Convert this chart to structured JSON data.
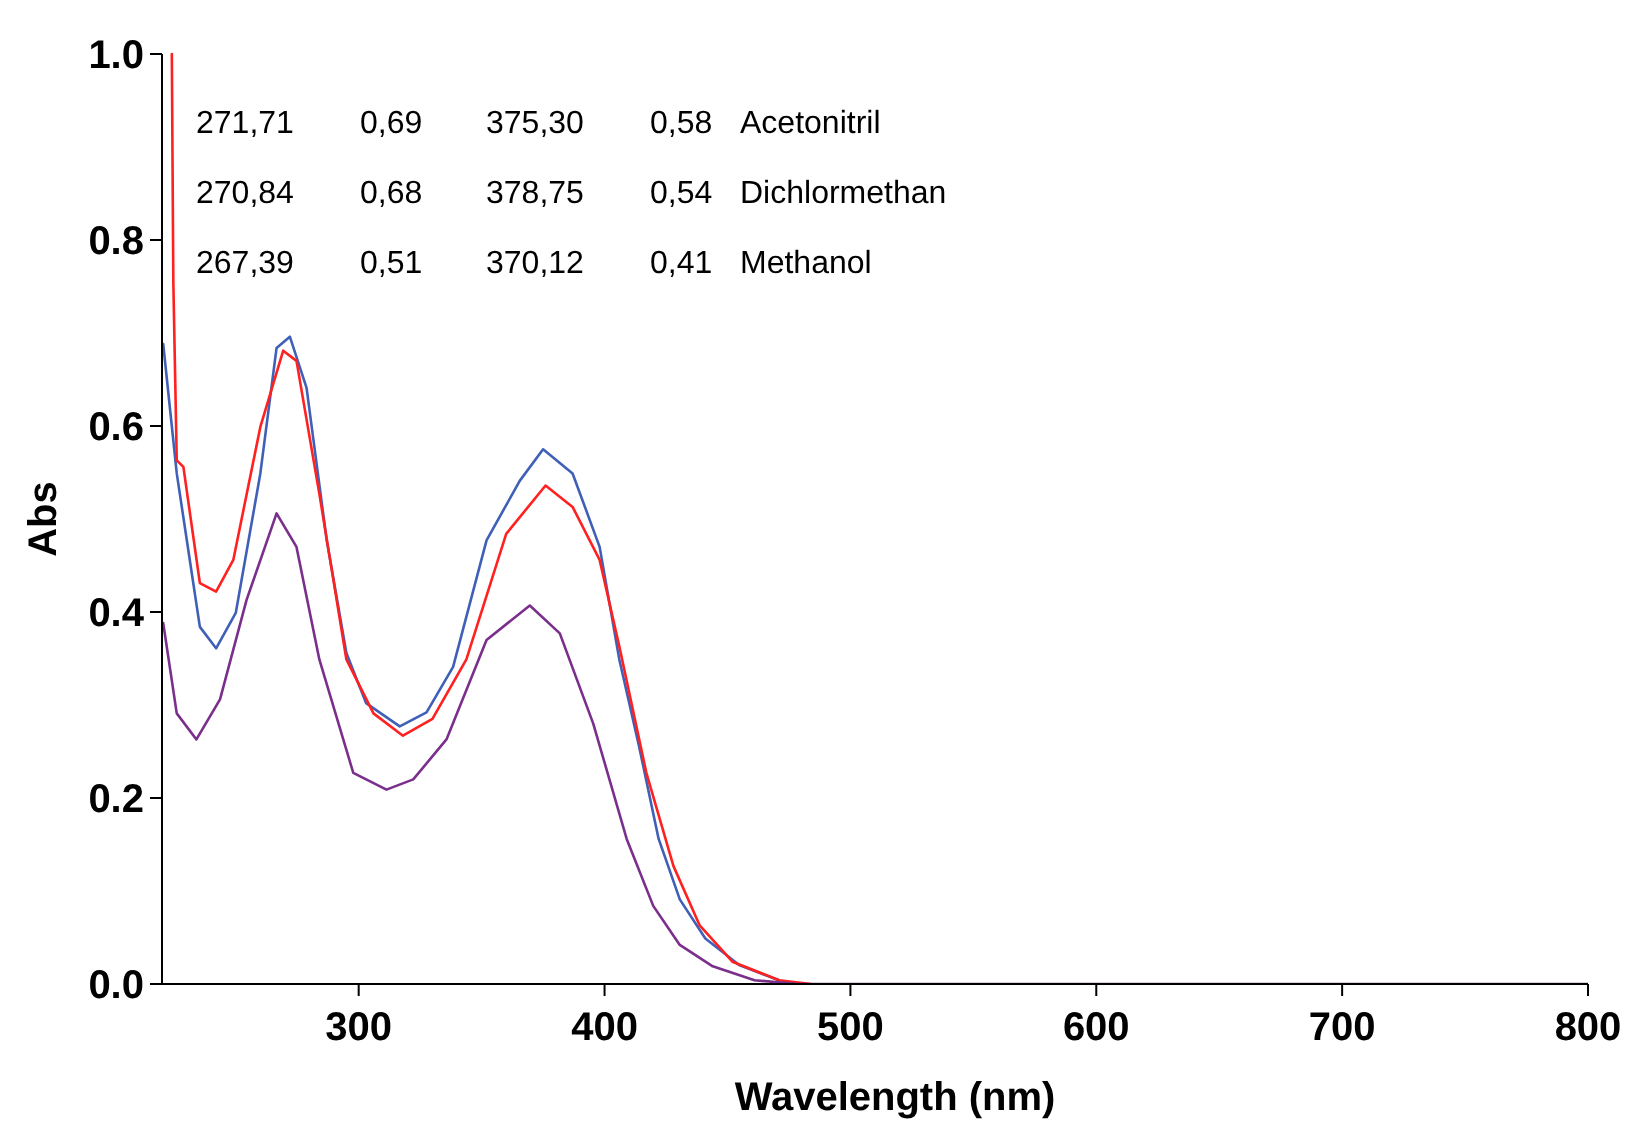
{
  "chart_data": {
    "type": "line",
    "xlabel": "Wavelength (nm)",
    "ylabel": "Abs",
    "xlim": [
      220,
      800
    ],
    "xticks": [
      300,
      400,
      500,
      600,
      700,
      800
    ],
    "ylim": [
      0,
      1
    ],
    "yticks": [
      {
        "value": 0,
        "label": "0.0"
      },
      {
        "value": 0.2,
        "label": "0.2"
      },
      {
        "value": 0.4,
        "label": "0.4"
      },
      {
        "value": 0.6,
        "label": "0.6"
      },
      {
        "value": 0.8,
        "label": "0.8"
      },
      {
        "value": 1,
        "label": "1.0"
      }
    ],
    "grid": false,
    "marker": "none",
    "line_style": "solid",
    "series": [
      {
        "color": "#4060b8",
        "x": [
          220.5,
          226,
          235.4,
          242,
          250,
          260,
          266.6,
          272,
          278.8,
          287,
          295,
          303,
          316.7,
          327.6,
          338.4,
          352,
          365.5,
          375,
          387,
          398,
          406,
          414,
          422,
          430.6,
          441,
          455,
          471
        ],
        "values": [
          0.688,
          0.549,
          0.384,
          0.361,
          0.399,
          0.549,
          0.684,
          0.696,
          0.641,
          0.477,
          0.356,
          0.302,
          0.277,
          0.292,
          0.341,
          0.477,
          0.541,
          0.575,
          0.549,
          0.47,
          0.349,
          0.256,
          0.156,
          0.091,
          0.049,
          0.02,
          0.004
        ]
      },
      {
        "color": "#ff2020",
        "x": [
          224,
          224.6,
          226,
          228.7,
          235.4,
          242,
          249,
          260,
          269.3,
          274.7,
          284,
          295,
          306,
          318,
          330,
          343.8,
          360,
          376,
          387,
          398,
          406,
          417,
          428,
          438.7,
          452,
          471,
          484
        ],
        "values": [
          1,
          0.756,
          0.563,
          0.556,
          0.431,
          0.422,
          0.456,
          0.599,
          0.681,
          0.67,
          0.527,
          0.349,
          0.291,
          0.267,
          0.285,
          0.349,
          0.484,
          0.536,
          0.513,
          0.456,
          0.363,
          0.227,
          0.127,
          0.063,
          0.024,
          0.004,
          0
        ]
      },
      {
        "color": "#7b2f8c",
        "x": [
          220.5,
          226,
          234,
          243.6,
          254.4,
          266.6,
          274.7,
          284,
          297.8,
          311.3,
          322.2,
          335.7,
          352,
          369.6,
          381.8,
          395.4,
          409,
          419.8,
          430.6,
          444,
          461,
          479,
          500,
          600,
          700,
          800
        ],
        "values": [
          0.388,
          0.291,
          0.263,
          0.306,
          0.413,
          0.506,
          0.47,
          0.349,
          0.227,
          0.209,
          0.22,
          0.263,
          0.37,
          0.407,
          0.377,
          0.28,
          0.156,
          0.084,
          0.042,
          0.019,
          0.004,
          0,
          0,
          0,
          0,
          0
        ]
      }
    ],
    "annotations": [
      "271,71",
      "0,69",
      "375,30",
      "0,58",
      "Acetonitril",
      "270,84",
      "0,68",
      "378,75",
      "0,54",
      "Dichlormethan",
      "267,39",
      "0,51",
      "370,12",
      "0,41",
      "Methanol"
    ]
  }
}
